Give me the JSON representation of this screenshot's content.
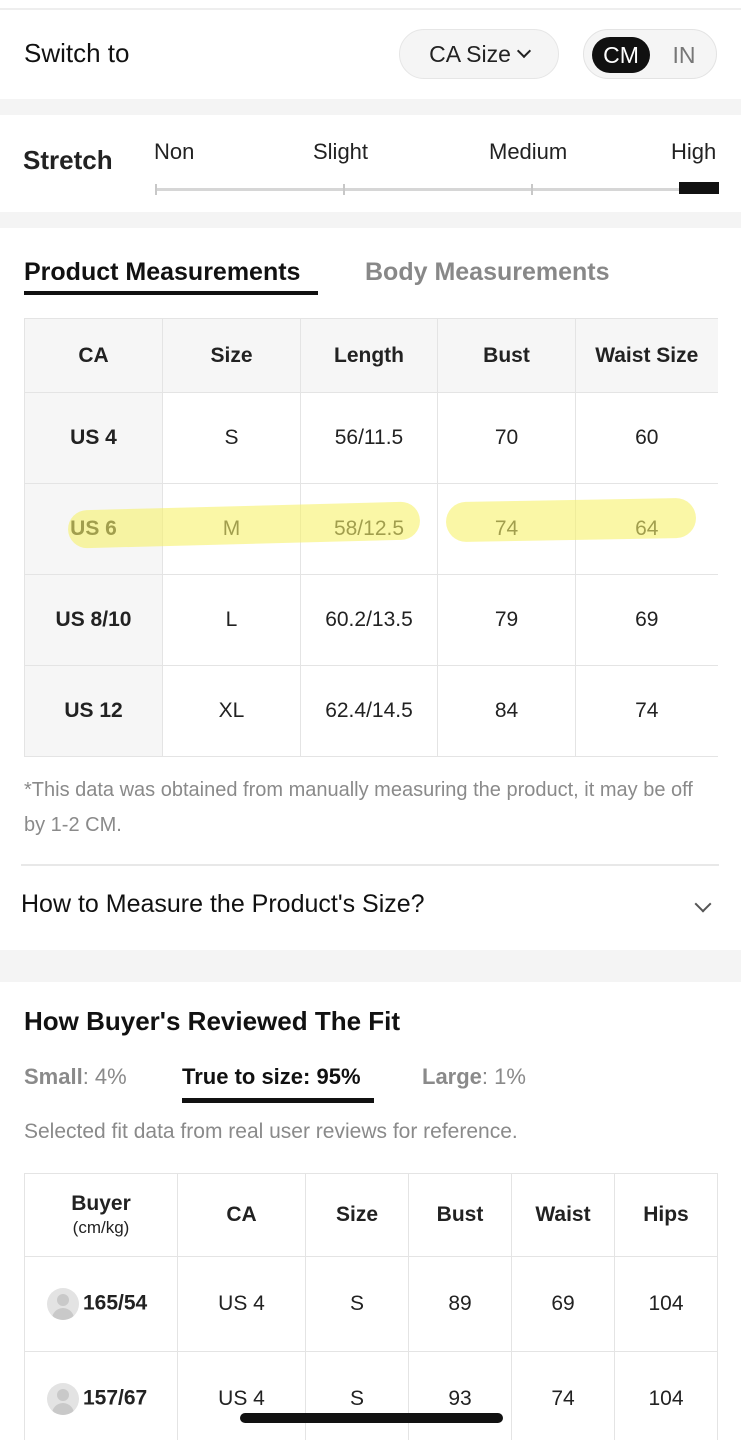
{
  "switch": {
    "label": "Switch to",
    "size_select": "CA Size",
    "units": [
      "CM",
      "IN"
    ],
    "active_unit": "CM"
  },
  "stretch": {
    "label": "Stretch",
    "options": [
      "Non",
      "Slight",
      "Medium",
      "High"
    ],
    "active": "High"
  },
  "tabs": {
    "product": "Product Measurements",
    "body": "Body Measurements",
    "active": "Product Measurements"
  },
  "measurements": {
    "headers": [
      "CA",
      "Size",
      "Length",
      "Bust",
      "Waist Size"
    ],
    "rows": [
      [
        "US 4",
        "S",
        "56/11.5",
        "70",
        "60"
      ],
      [
        "US 6",
        "M",
        "58/12.5",
        "74",
        "64"
      ],
      [
        "US 8/10",
        "L",
        "60.2/13.5",
        "79",
        "69"
      ],
      [
        "US 12",
        "XL",
        "62.4/14.5",
        "84",
        "74"
      ]
    ],
    "highlight_color": "#f7f26a"
  },
  "note": "*This data was obtained from manually measuring the product, it may be off by 1-2 CM.",
  "how_to_measure": "How to Measure the Product's Size?",
  "fit": {
    "title": "How Buyer's Reviewed The Fit",
    "small_label": "Small",
    "small_value": ": 4%",
    "true_label": "True to size: 95%",
    "large_label": "Large",
    "large_value": ": 1%",
    "note": "Selected fit data from real user reviews for reference."
  },
  "reviews": {
    "headers": [
      "Buyer",
      "CA",
      "Size",
      "Bust",
      "Waist",
      "Hips"
    ],
    "buyer_sub": "(cm/kg)",
    "rows": [
      [
        "165/54",
        "US 4",
        "S",
        "89",
        "69",
        "104"
      ],
      [
        "157/67",
        "US 4",
        "S",
        "93",
        "74",
        "104"
      ]
    ]
  }
}
